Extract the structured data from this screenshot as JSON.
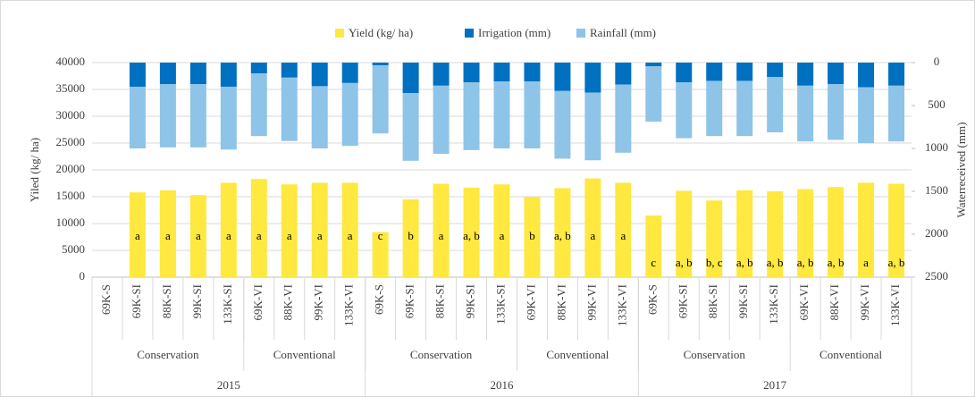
{
  "chart_data": {
    "type": "bar",
    "y_label": "Yiled (kg/ ha)",
    "y2_label": "Waterreceived (mm)",
    "ylim": [
      0,
      40000
    ],
    "yticks": [
      0,
      5000,
      10000,
      15000,
      20000,
      25000,
      30000,
      35000,
      40000
    ],
    "y2lim": [
      0,
      2500
    ],
    "y2ticks": [
      0,
      500,
      1000,
      1500,
      2000,
      2500
    ],
    "y2_inverted": true,
    "grid": true,
    "legend": "top",
    "years": [
      {
        "name": "2015",
        "systems": [
          {
            "name": "Conservation",
            "categories": [
              "69K-S",
              "69K-SI",
              "88K-SI",
              "99K-SI",
              "133K-SI"
            ]
          },
          {
            "name": "Conventional",
            "categories": [
              "69K-VI",
              "88K-VI",
              "99K-VI",
              "133K-VI"
            ]
          }
        ]
      },
      {
        "name": "2016",
        "systems": [
          {
            "name": "Conservation",
            "categories": [
              "69K-S",
              "69K-SI",
              "88K-SI",
              "99K-SI",
              "133K-SI"
            ]
          },
          {
            "name": "Conventional",
            "categories": [
              "69K-VI",
              "88K-VI",
              "99K-VI",
              "133K-VI"
            ]
          }
        ]
      },
      {
        "name": "2017",
        "systems": [
          {
            "name": "Conservation",
            "categories": [
              "69K-S",
              "69K-SI",
              "88K-SI",
              "99K-SI",
              "133K-SI"
            ]
          },
          {
            "name": "Conventional",
            "categories": [
              "69K-VI",
              "88K-VI",
              "99K-VI",
              "133K-VI"
            ]
          }
        ]
      }
    ],
    "series": [
      {
        "name": "Yield (kg/ ha)",
        "color": "#ffe83f",
        "axis": "y",
        "values": [
          null,
          15800,
          16200,
          15300,
          17600,
          18300,
          17300,
          17600,
          17600,
          8400,
          14500,
          17400,
          16700,
          17300,
          14900,
          16600,
          18400,
          17600,
          11500,
          16100,
          14300,
          16200,
          16000,
          16400,
          16800,
          17600,
          17400
        ]
      },
      {
        "name": "Irrigation (mm)",
        "color": "#0070c0",
        "axis": "y2",
        "values": [
          null,
          281,
          250,
          250,
          281,
          125,
          175,
          275,
          238,
          31,
          356,
          269,
          231,
          219,
          219,
          331,
          350,
          256,
          44,
          231,
          213,
          213,
          169,
          269,
          250,
          288,
          269
        ]
      },
      {
        "name": "Rainfall (mm)",
        "color": "#8ec4e8",
        "axis": "y2",
        "values": [
          null,
          719,
          738,
          738,
          732,
          731,
          738,
          725,
          731,
          794,
          788,
          794,
          788,
          781,
          781,
          788,
          788,
          794,
          644,
          650,
          643,
          643,
          644,
          650,
          650,
          650,
          650
        ]
      }
    ],
    "annotations": [
      null,
      "a",
      "a",
      "a",
      "a",
      "a",
      "a",
      "a",
      "a",
      "c",
      "b",
      "a",
      "a, b",
      "a",
      "b",
      "a, b",
      "a",
      "a",
      "c",
      "a, b",
      "b, c",
      "a, b",
      "a, b",
      "a, b",
      "a, b",
      "a",
      "a, b"
    ]
  }
}
